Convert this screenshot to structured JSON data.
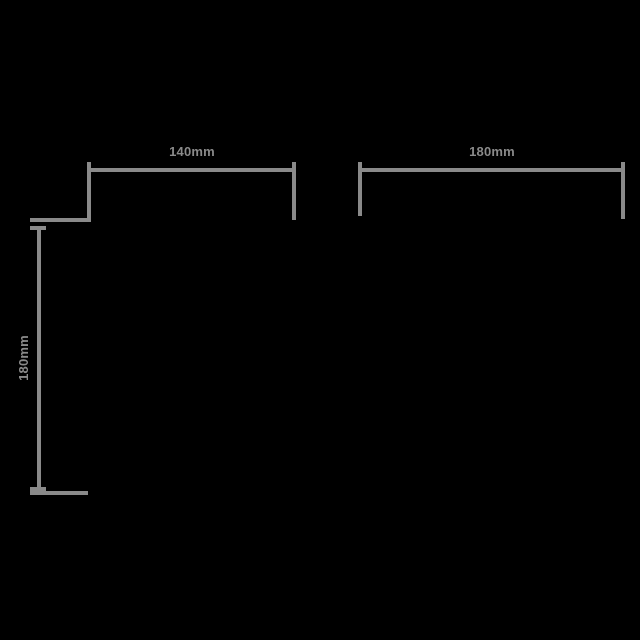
{
  "diagram": {
    "type": "dimension-drawing",
    "dimensions": {
      "top_left_width": {
        "label": "140mm"
      },
      "top_right_width": {
        "label": "180mm"
      },
      "left_height": {
        "label": "180mm"
      }
    }
  },
  "colors": {
    "background": "#000000",
    "line": "#8a8a8a",
    "text": "#8a8a8a"
  }
}
